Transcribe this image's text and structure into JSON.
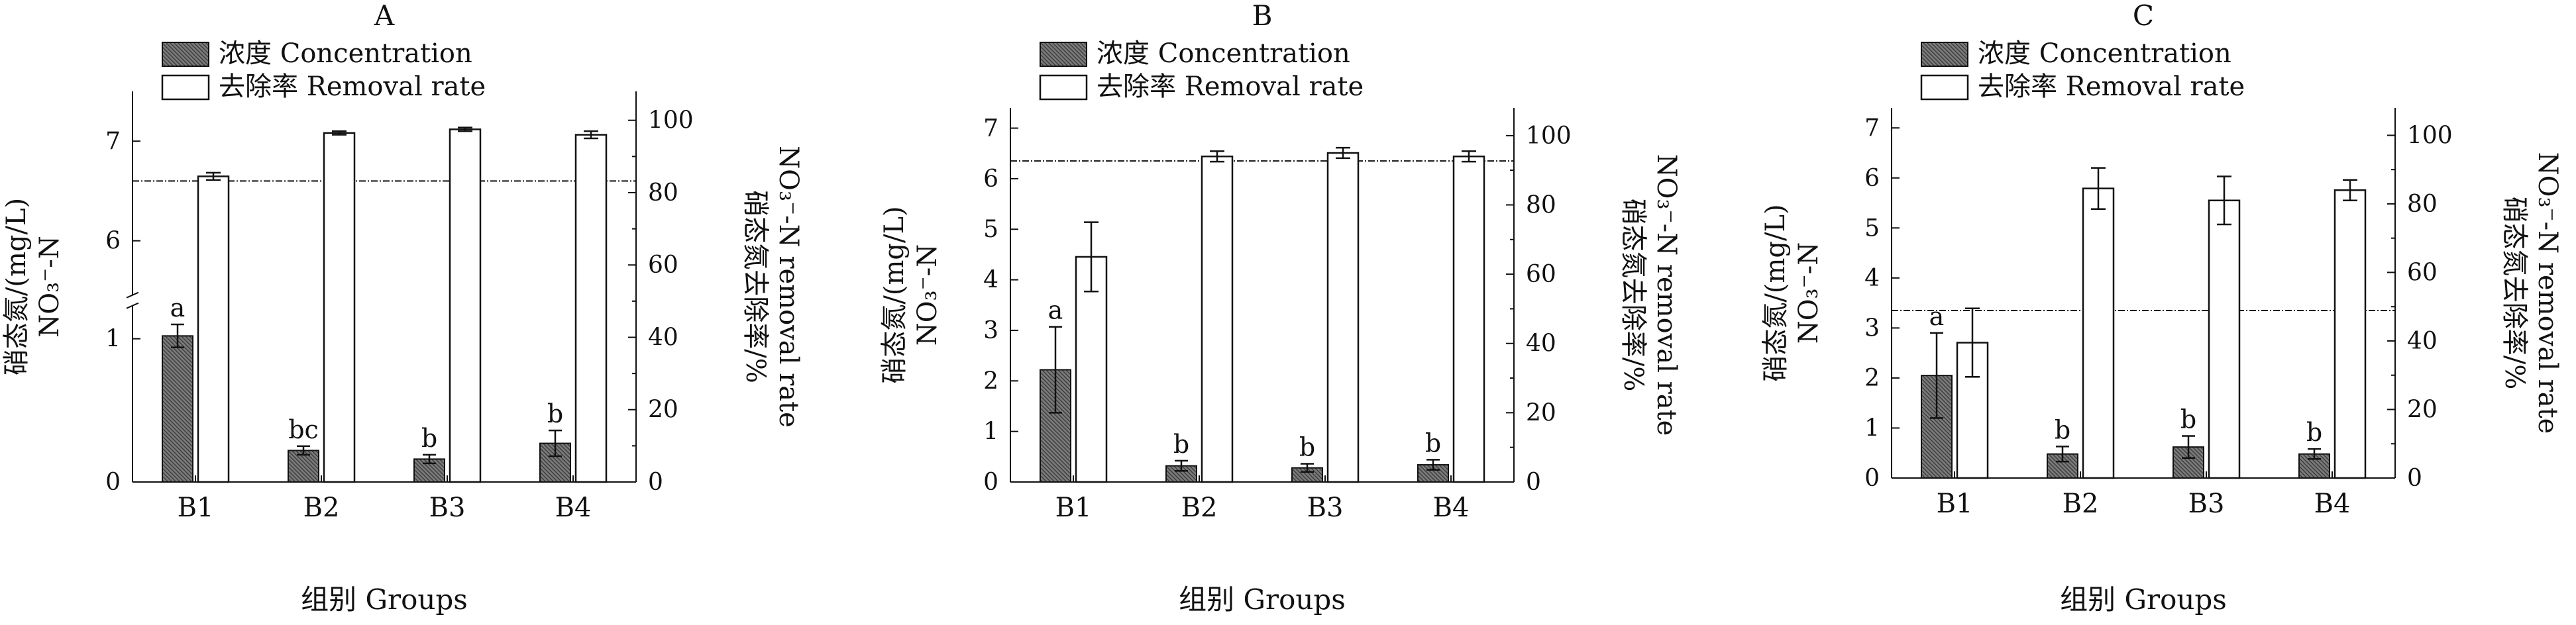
{
  "figure": {
    "legend": {
      "concentration": "浓度 Concentration",
      "removal": "去除率 Removal rate"
    },
    "y_left_label_cn": "硝态氮/(mg/L)",
    "y_left_label_en": "NO₃⁻-N",
    "y_right_label_cn": "硝态氮去除率/%",
    "y_right_label_en": "NO₃⁻-N removal rate",
    "x_label": "组别 Groups"
  },
  "chart_data": [
    {
      "type": "bar",
      "panel_label": "A",
      "categories": [
        "B1",
        "B2",
        "B3",
        "B4"
      ],
      "series": [
        {
          "name": "浓度 Concentration",
          "axis": "left",
          "values": [
            1.02,
            0.22,
            0.16,
            0.27
          ],
          "errors": [
            0.08,
            0.03,
            0.03,
            0.09
          ]
        },
        {
          "name": "去除率 Removal rate",
          "axis": "right",
          "values": [
            84.5,
            96.5,
            97.5,
            96.0
          ],
          "errors": [
            1.0,
            0.5,
            0.5,
            1.0
          ]
        }
      ],
      "significance": [
        "a",
        "bc",
        "b",
        "b"
      ],
      "reference_line": {
        "axis": "left",
        "value": 6.6
      },
      "y_left": {
        "broken": true,
        "lower_range": [
          0,
          1.2
        ],
        "upper_range": [
          5.5,
          7.5
        ],
        "lower_ticks": [
          0,
          1
        ],
        "upper_ticks": [
          6,
          7
        ]
      },
      "y_right": {
        "range": [
          0,
          108
        ],
        "ticks": [
          0,
          20,
          40,
          60,
          80,
          100
        ]
      }
    },
    {
      "type": "bar",
      "panel_label": "B",
      "categories": [
        "B1",
        "B2",
        "B3",
        "B4"
      ],
      "series": [
        {
          "name": "浓度 Concentration",
          "axis": "left",
          "values": [
            2.22,
            0.32,
            0.28,
            0.34
          ],
          "errors": [
            0.85,
            0.1,
            0.08,
            0.1
          ]
        },
        {
          "name": "去除率 Removal rate",
          "axis": "right",
          "values": [
            65,
            94,
            95,
            94
          ],
          "errors": [
            10,
            1.5,
            1.5,
            1.5
          ]
        }
      ],
      "significance": [
        "a",
        "b",
        "b",
        "b"
      ],
      "reference_line": {
        "axis": "left",
        "value": 6.35
      },
      "y_left": {
        "range": [
          0,
          7.4
        ],
        "ticks": [
          0,
          1,
          2,
          3,
          4,
          5,
          6,
          7
        ]
      },
      "y_right": {
        "range": [
          0,
          108
        ],
        "ticks": [
          0,
          20,
          40,
          60,
          80,
          100
        ]
      }
    },
    {
      "type": "bar",
      "panel_label": "C",
      "categories": [
        "B1",
        "B2",
        "B3",
        "B4"
      ],
      "series": [
        {
          "name": "浓度 Concentration",
          "axis": "left",
          "values": [
            2.05,
            0.48,
            0.62,
            0.48
          ],
          "errors": [
            0.85,
            0.15,
            0.22,
            0.1
          ]
        },
        {
          "name": "去除率 Removal rate",
          "axis": "right",
          "values": [
            39.5,
            84.5,
            81,
            84
          ],
          "errors": [
            10,
            6,
            7,
            3
          ]
        }
      ],
      "significance": [
        "a",
        "b",
        "b",
        "b"
      ],
      "reference_line": {
        "axis": "left",
        "value": 3.35
      },
      "y_left": {
        "range": [
          0,
          7.4
        ],
        "ticks": [
          0,
          1,
          2,
          3,
          4,
          5,
          6,
          7
        ]
      },
      "y_right": {
        "range": [
          0,
          108
        ],
        "ticks": [
          0,
          20,
          40,
          60,
          80,
          100
        ]
      }
    }
  ]
}
